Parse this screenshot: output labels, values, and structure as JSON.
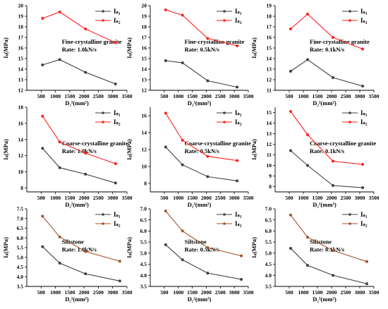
{
  "chart_data": [
    {
      "type": "line",
      "xlabel": "D₂²(mm²)",
      "ylabel": "Iₛ(MPa)",
      "annotation_lines": [
        "Fine-crystalline granite",
        "Rate:  1.0kN/s"
      ],
      "xlim": [
        0,
        3500
      ],
      "ylim": [
        12,
        20
      ],
      "xticks": [
        500,
        1000,
        1500,
        2000,
        2500,
        3000,
        3500
      ],
      "yticks": [
        12,
        13,
        14,
        15,
        16,
        17,
        18,
        19,
        20
      ],
      "series": [
        {
          "name": "Iₛ₁",
          "color": "#404040",
          "x": [
            550,
            1150,
            2050,
            3100
          ],
          "y": [
            14.4,
            14.9,
            13.7,
            12.6
          ]
        },
        {
          "name": "Iₛ₂",
          "color": "#ff2020",
          "x": [
            550,
            1150,
            2050,
            3100
          ],
          "y": [
            18.8,
            19.4,
            17.8,
            16.5
          ]
        }
      ]
    },
    {
      "type": "line",
      "xlabel": "D₂²(mm²)",
      "ylabel": "Iₛ(MPa)",
      "annotation_lines": [
        "Fine-crystalline granite",
        "Rate:  0.5kN/s"
      ],
      "xlim": [
        0,
        3500
      ],
      "ylim": [
        12,
        20
      ],
      "xticks": [
        500,
        1000,
        1500,
        2000,
        2500,
        3000,
        3500
      ],
      "yticks": [
        12,
        13,
        14,
        15,
        16,
        17,
        18,
        19,
        20
      ],
      "series": [
        {
          "name": "Iₛ₁",
          "color": "#404040",
          "x": [
            550,
            1150,
            2050,
            3100
          ],
          "y": [
            14.8,
            14.6,
            12.9,
            12.3
          ]
        },
        {
          "name": "Iₛ₂",
          "color": "#ff2020",
          "x": [
            550,
            1150,
            2050,
            3100
          ],
          "y": [
            19.6,
            19.1,
            16.9,
            16.2
          ]
        }
      ]
    },
    {
      "type": "line",
      "xlabel": "D₂²(mm²)",
      "ylabel": "Iₛ(MPa)",
      "annotation_lines": [
        "Fine-crystalline granite",
        "Rate:  0.1kN/s"
      ],
      "xlim": [
        0,
        3500
      ],
      "ylim": [
        11,
        19
      ],
      "xticks": [
        500,
        1000,
        1500,
        2000,
        2500,
        3000,
        3500
      ],
      "yticks": [
        11,
        12,
        13,
        14,
        15,
        16,
        17,
        18,
        19
      ],
      "series": [
        {
          "name": "Iₛ₁",
          "color": "#404040",
          "x": [
            550,
            1150,
            2050,
            3100
          ],
          "y": [
            12.8,
            13.9,
            12.2,
            11.4
          ]
        },
        {
          "name": "Iₛ₂",
          "color": "#ff2020",
          "x": [
            550,
            1150,
            2050,
            3100
          ],
          "y": [
            16.8,
            18.2,
            16.0,
            14.9
          ]
        }
      ]
    },
    {
      "type": "line",
      "xlabel": "D₂²(mm²)",
      "ylabel": "Iₛ(MPa)",
      "annotation_lines": [
        "Coarse-crystalline granite",
        "Rate:  1.0kN/s"
      ],
      "xlim": [
        0,
        3500
      ],
      "ylim": [
        7.5,
        18
      ],
      "xticks": [
        500,
        1000,
        1500,
        2000,
        2500,
        3000,
        3500
      ],
      "yticks": [
        8,
        10,
        12,
        14,
        16,
        18
      ],
      "series": [
        {
          "name": "Iₛ₁",
          "color": "#404040",
          "x": [
            550,
            1150,
            2050,
            3100
          ],
          "y": [
            12.9,
            10.5,
            9.7,
            8.6
          ]
        },
        {
          "name": "Iₛ₂",
          "color": "#ff2020",
          "x": [
            550,
            1150,
            2050,
            3100
          ],
          "y": [
            16.9,
            13.7,
            12.3,
            11.0
          ]
        }
      ]
    },
    {
      "type": "line",
      "xlabel": "D₂²(mm²)",
      "ylabel": "Iₛ(MPa)",
      "annotation_lines": [
        "Coarse-crystalline granite",
        "Rate:  0.5kN/s"
      ],
      "xlim": [
        0,
        3500
      ],
      "ylim": [
        7,
        17
      ],
      "xticks": [
        500,
        1000,
        1500,
        2000,
        2500,
        3000,
        3500
      ],
      "yticks": [
        8,
        10,
        12,
        14,
        16
      ],
      "series": [
        {
          "name": "Iₛ₁",
          "color": "#404040",
          "x": [
            550,
            1150,
            2050,
            3100
          ],
          "y": [
            12.3,
            10.2,
            8.8,
            8.3
          ]
        },
        {
          "name": "Iₛ₂",
          "color": "#ff2020",
          "x": [
            550,
            1150,
            2050,
            3100
          ],
          "y": [
            16.3,
            13.1,
            11.2,
            10.7
          ]
        }
      ]
    },
    {
      "type": "line",
      "xlabel": "D₂²(mm²)",
      "ylabel": "Iₛ(MPa)",
      "annotation_lines": [
        "Coarse-crystalline granite",
        "Rate:  0.1kN/s"
      ],
      "xlim": [
        0,
        3500
      ],
      "ylim": [
        7.5,
        15.5
      ],
      "xticks": [
        500,
        1000,
        1500,
        2000,
        2500,
        3000,
        3500
      ],
      "yticks": [
        8,
        9,
        10,
        11,
        12,
        13,
        14,
        15
      ],
      "series": [
        {
          "name": "Iₛ₁",
          "color": "#404040",
          "x": [
            550,
            1150,
            2050,
            3100
          ],
          "y": [
            11.4,
            10.0,
            8.1,
            7.9
          ]
        },
        {
          "name": "Iₛ₂",
          "color": "#ff2020",
          "x": [
            550,
            1150,
            2050,
            3100
          ],
          "y": [
            15.1,
            12.9,
            10.4,
            10.1
          ]
        }
      ]
    },
    {
      "type": "line",
      "xlabel": "D₂²(mm²)",
      "ylabel": "Iₛ(MPa)",
      "annotation_lines": [
        "Siltstone",
        "Rate:  1.0kN/s"
      ],
      "xlim": [
        0,
        3500
      ],
      "ylim": [
        3.5,
        7.5
      ],
      "xticks": [
        500,
        1000,
        1500,
        2000,
        2500,
        3000,
        3500
      ],
      "yticks": [
        3.5,
        4.0,
        4.5,
        5.0,
        5.5,
        6.0,
        6.5,
        7.0,
        7.5
      ],
      "series": [
        {
          "name": "Iₛ₁",
          "color": "#404040",
          "x": [
            550,
            1150,
            2050,
            3250
          ],
          "y": [
            5.55,
            4.7,
            4.15,
            3.78
          ]
        },
        {
          "name": "Iₛ₂",
          "color": "#a0522d",
          "x": [
            550,
            1150,
            2050,
            3250
          ],
          "y": [
            7.12,
            6.05,
            5.3,
            4.8
          ]
        }
      ]
    },
    {
      "type": "line",
      "xlabel": "D₂²(mm²)",
      "ylabel": "Iₛ(MPa)",
      "annotation_lines": [
        "Siltstone",
        "Rate:  0.5kN/s"
      ],
      "xlim": [
        0,
        3500
      ],
      "ylim": [
        3.5,
        7.0
      ],
      "xticks": [
        500,
        1000,
        1500,
        2000,
        2500,
        3000,
        3500
      ],
      "yticks": [
        3.5,
        4.0,
        4.5,
        5.0,
        5.5,
        6.0,
        6.5,
        7.0
      ],
      "series": [
        {
          "name": "Iₛ₁",
          "color": "#404040",
          "x": [
            550,
            1150,
            2050,
            3250
          ],
          "y": [
            5.38,
            4.7,
            4.1,
            3.82
          ]
        },
        {
          "name": "Iₛ₂",
          "color": "#a0522d",
          "x": [
            550,
            1150,
            2050,
            3250
          ],
          "y": [
            6.9,
            6.0,
            5.25,
            4.88
          ]
        }
      ]
    },
    {
      "type": "line",
      "xlabel": "D₂²(mm²)",
      "ylabel": "Iₛ(MPa)",
      "annotation_lines": [
        "Siltstone",
        "Rate:  0.1kN/s"
      ],
      "xlim": [
        0,
        3500
      ],
      "ylim": [
        3.5,
        7.0
      ],
      "xticks": [
        500,
        1000,
        1500,
        2000,
        2500,
        3000,
        3500
      ],
      "yticks": [
        3.5,
        4.0,
        4.5,
        5.0,
        5.5,
        6.0,
        6.5,
        7.0
      ],
      "series": [
        {
          "name": "Iₛ₁",
          "color": "#404040",
          "x": [
            550,
            1150,
            2050,
            3250
          ],
          "y": [
            5.22,
            4.45,
            4.0,
            3.62
          ]
        },
        {
          "name": "Iₛ₂",
          "color": "#a0522d",
          "x": [
            550,
            1150,
            2050,
            3250
          ],
          "y": [
            6.72,
            5.72,
            5.12,
            4.62
          ]
        }
      ]
    }
  ]
}
